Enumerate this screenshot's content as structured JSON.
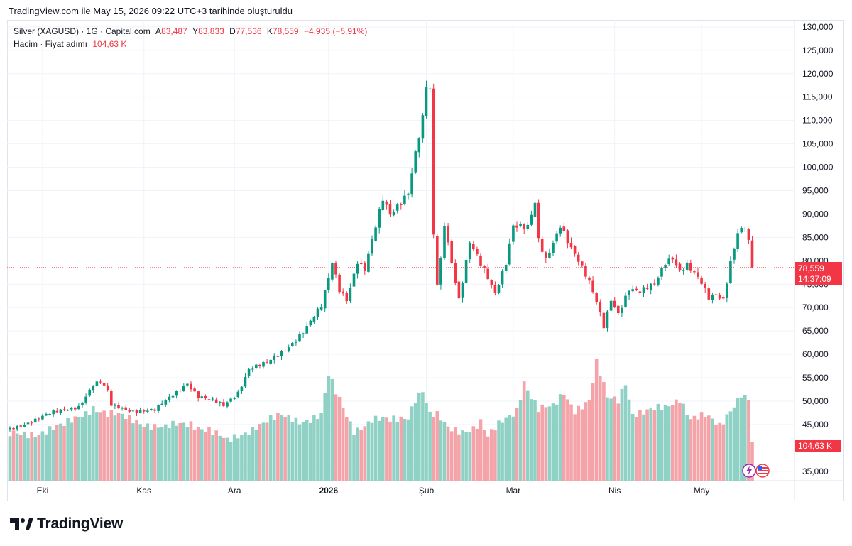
{
  "header": "TradingView.com ile May 15, 2026 09:22 UTC+3 tarihinde oluşturuldu",
  "legend": {
    "symbol": "Silver (XAGUSD) · 1G · Capital.com",
    "open_label": "A",
    "open": "83,487",
    "high_label": "Y",
    "high": "83,833",
    "low_label": "D",
    "low": "77,536",
    "close_label": "K",
    "close": "78,559",
    "change": "−4,935 (−5,91%)",
    "volume_label": "Hacim · Fiyat adımı",
    "volume_value": "104,63 K"
  },
  "price_tag": {
    "price": "78,559",
    "countdown": "14:37:09"
  },
  "volume_tag": "104,63 K",
  "brand": "TradingView",
  "colors": {
    "up": "#089981",
    "down": "#f23645",
    "vol_up": "#8fd2c5",
    "vol_down": "#f4a3a8",
    "grid": "#f0f3fa"
  },
  "chart_data": {
    "type": "candlestick",
    "title": "Silver (XAGUSD) · 1G · Capital.com",
    "y_ticks": [
      130000,
      125000,
      120000,
      115000,
      110000,
      105000,
      100000,
      95000,
      90000,
      85000,
      80000,
      75000,
      70000,
      65000,
      60000,
      55000,
      50000,
      45000,
      35000
    ],
    "y_tick_labels": [
      "130,000",
      "125,000",
      "120,000",
      "115,000",
      "110,000",
      "105,000",
      "100,000",
      "95,000",
      "90,000",
      "85,000",
      "80,000",
      "75,000",
      "70,000",
      "65,000",
      "60,000",
      "55,000",
      "50,000",
      "45,000",
      "35,000"
    ],
    "ylim": [
      33000,
      131500
    ],
    "x_labels": [
      "Eki",
      "Kas",
      "Ara",
      "2026",
      "Şub",
      "Mar",
      "Nis",
      "May"
    ],
    "last_price": 78559,
    "series": [
      {
        "name": "XAGUSD",
        "ohlc_close_anchors": [
          [
            0,
            44000
          ],
          [
            10,
            47000
          ],
          [
            19,
            49000
          ],
          [
            23,
            53500
          ],
          [
            25,
            54000
          ],
          [
            27,
            52000
          ],
          [
            28,
            49000
          ],
          [
            34,
            48000
          ],
          [
            40,
            48000
          ],
          [
            46,
            52000
          ],
          [
            49,
            54000
          ],
          [
            52,
            51000
          ],
          [
            56,
            50000
          ],
          [
            59,
            49000
          ],
          [
            63,
            52000
          ],
          [
            66,
            57000
          ],
          [
            71,
            58000
          ],
          [
            76,
            61000
          ],
          [
            81,
            65000
          ],
          [
            86,
            70000
          ],
          [
            88,
            76000
          ],
          [
            89,
            79500
          ],
          [
            91,
            74000
          ],
          [
            93,
            72000
          ],
          [
            96,
            80000
          ],
          [
            98,
            78000
          ],
          [
            103,
            93000
          ],
          [
            105,
            90000
          ],
          [
            110,
            95000
          ],
          [
            112,
            103000
          ],
          [
            114,
            110000
          ],
          [
            115,
            117000
          ],
          [
            116,
            116000
          ],
          [
            117,
            85000
          ],
          [
            118,
            75000
          ],
          [
            119,
            80000
          ],
          [
            120,
            88000
          ],
          [
            122,
            80000
          ],
          [
            124,
            72000
          ],
          [
            127,
            84000
          ],
          [
            130,
            79000
          ],
          [
            132,
            76000
          ],
          [
            134,
            73000
          ],
          [
            137,
            80000
          ],
          [
            139,
            88000
          ],
          [
            143,
            87000
          ],
          [
            145,
            92000
          ],
          [
            146,
            84000
          ],
          [
            148,
            80000
          ],
          [
            150,
            84000
          ],
          [
            152,
            88000
          ],
          [
            155,
            83000
          ],
          [
            157,
            80000
          ],
          [
            160,
            75000
          ],
          [
            162,
            71000
          ],
          [
            164,
            66000
          ],
          [
            166,
            72000
          ],
          [
            168,
            69000
          ],
          [
            171,
            74000
          ],
          [
            174,
            73000
          ],
          [
            178,
            75000
          ],
          [
            181,
            80000
          ],
          [
            183,
            81000
          ],
          [
            185,
            78000
          ],
          [
            187,
            79000
          ],
          [
            191,
            75000
          ],
          [
            193,
            72000
          ],
          [
            195,
            73000
          ],
          [
            197,
            72000
          ],
          [
            199,
            80000
          ],
          [
            201,
            86000
          ],
          [
            203,
            87000
          ],
          [
            204,
            83500
          ],
          [
            205,
            78600
          ]
        ]
      }
    ],
    "volume": {
      "last_value": "104,63 K",
      "anchors": [
        [
          0,
          42500
        ],
        [
          15,
          44500
        ],
        [
          23,
          49000
        ],
        [
          27,
          47000
        ],
        [
          35,
          46000
        ],
        [
          43,
          44000
        ],
        [
          50,
          45500
        ],
        [
          55,
          44000
        ],
        [
          60,
          41000
        ],
        [
          68,
          45000
        ],
        [
          75,
          46500
        ],
        [
          80,
          46000
        ],
        [
          86,
          47000
        ],
        [
          88,
          55200
        ],
        [
          90,
          51500
        ],
        [
          95,
          44000
        ],
        [
          100,
          46000
        ],
        [
          105,
          45500
        ],
        [
          110,
          47000
        ],
        [
          112,
          51000
        ],
        [
          114,
          52500
        ],
        [
          116,
          47000
        ],
        [
          118,
          46500
        ],
        [
          121,
          44000
        ],
        [
          125,
          44000
        ],
        [
          128,
          44500
        ],
        [
          130,
          45500
        ],
        [
          132,
          42000
        ],
        [
          136,
          45500
        ],
        [
          140,
          48500
        ],
        [
          142,
          54500
        ],
        [
          144,
          51000
        ],
        [
          146,
          48000
        ],
        [
          150,
          48500
        ],
        [
          153,
          52000
        ],
        [
          156,
          48500
        ],
        [
          160,
          50000
        ],
        [
          162,
          57800
        ],
        [
          165,
          50500
        ],
        [
          168,
          50500
        ],
        [
          170,
          54500
        ],
        [
          172,
          47500
        ],
        [
          176,
          47500
        ],
        [
          181,
          48500
        ],
        [
          185,
          51000
        ],
        [
          188,
          46500
        ],
        [
          192,
          46500
        ],
        [
          196,
          44500
        ],
        [
          199,
          48500
        ],
        [
          202,
          52000
        ],
        [
          203,
          51000
        ],
        [
          204,
          50500
        ],
        [
          205,
          41000
        ]
      ]
    }
  }
}
